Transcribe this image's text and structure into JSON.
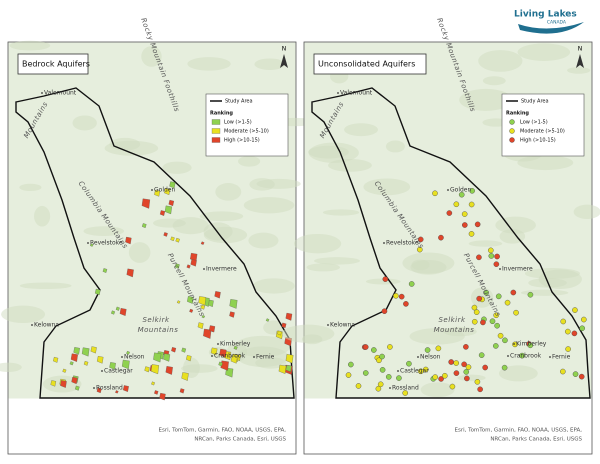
{
  "header": {
    "logo_main": "Living Lakes",
    "logo_sub": "CANADA"
  },
  "panels": [
    {
      "title": "Bedrock Aquifers",
      "north": "N",
      "symbol": "square",
      "legend": {
        "boundary": "Study Area",
        "heading": "Ranking",
        "items": [
          {
            "label": "Low (>1-5)",
            "color": "#8fd14f"
          },
          {
            "label": "Moderate (>5-10)",
            "color": "#e8e020"
          },
          {
            "label": "High (>10-15)",
            "color": "#e0452a"
          }
        ]
      },
      "places": [
        "Valemount",
        "Golden",
        "Revelstoke",
        "Invermere",
        "Kelowna",
        "Kimberley",
        "Cranbrook",
        "Fernie",
        "Nelson",
        "Castlegar",
        "Rossland"
      ],
      "ranges": [
        "Rocky Mountain Foothills",
        "Columbia Mountains",
        "Purcell Mountains",
        "Selkirk",
        "Mountains",
        "Mountains"
      ],
      "attribution": [
        "Esri, TomTom, Garmin, FAO, NOAA, USGS, EPA,",
        "NRCan, Parks Canada, Esri, USGS"
      ]
    },
    {
      "title": "Unconsolidated Aquifers",
      "north": "N",
      "symbol": "circle",
      "legend": {
        "boundary": "Study Area",
        "heading": "Ranking",
        "items": [
          {
            "label": "Low (>1-5)",
            "color": "#8fd14f"
          },
          {
            "label": "Moderate (>5-10)",
            "color": "#e8e020"
          },
          {
            "label": "High (>10-15)",
            "color": "#e0452a"
          }
        ]
      },
      "places": [
        "Valemount",
        "Golden",
        "Revelstoke",
        "Invermere",
        "Kelowna",
        "Kimberley",
        "Cranbrook",
        "Fernie",
        "Nelson",
        "Castlegar",
        "Rossland"
      ],
      "ranges": [
        "Rocky Mountain Foothills",
        "Columbia Mountains",
        "Purcell Mountains",
        "Selkirk",
        "Mountains",
        "Mountains"
      ],
      "attribution": [
        "Esri, TomTom, Garmin, FAO, NOAA, USGS, EPA,",
        "NRCan, Parks Canada, Esri, USGS"
      ]
    }
  ]
}
